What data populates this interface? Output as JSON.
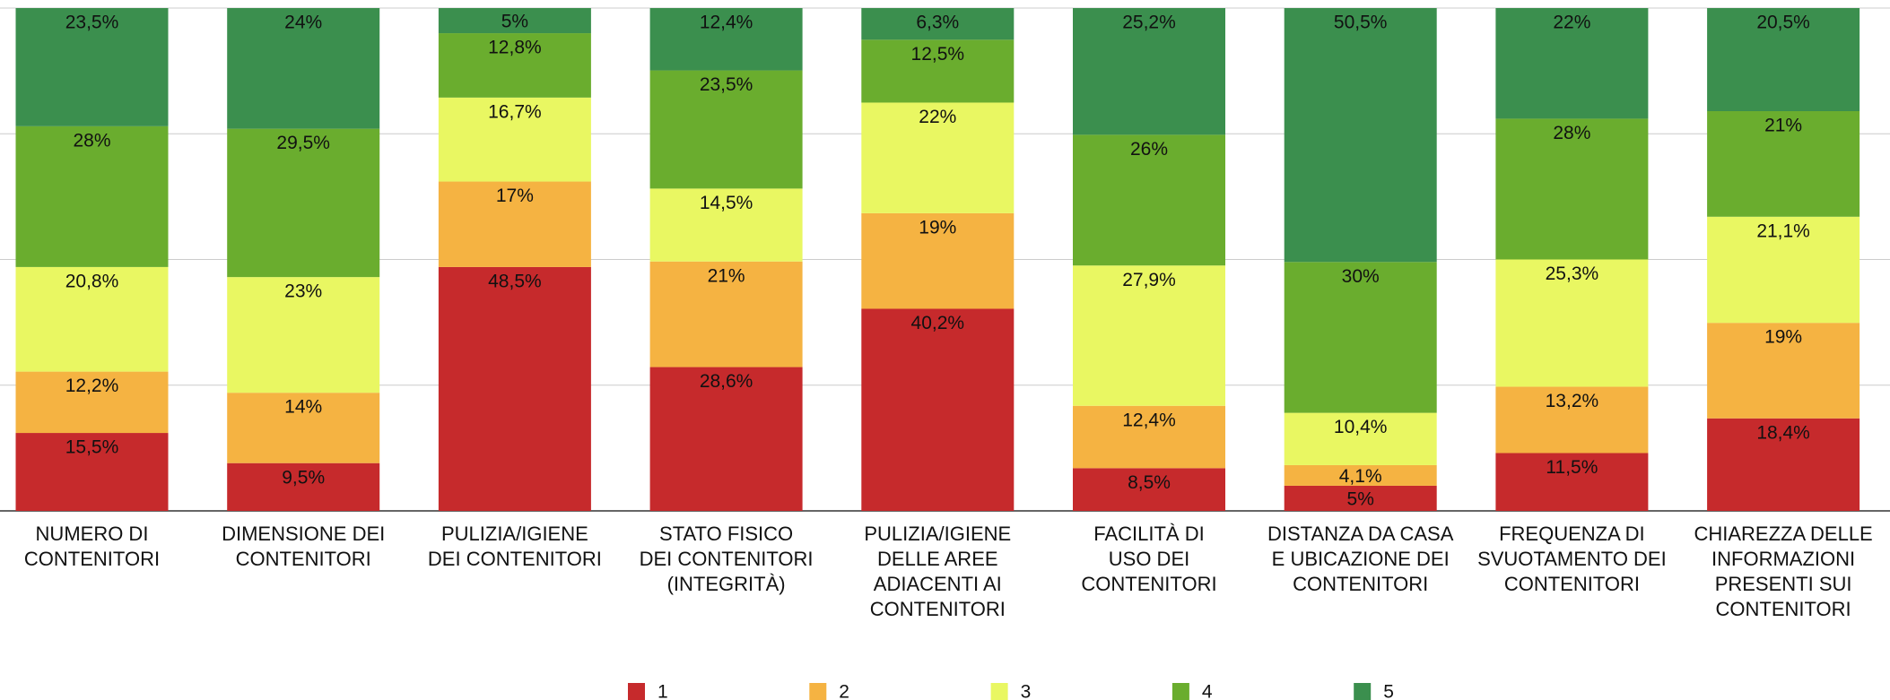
{
  "chart_data": {
    "type": "stacked_bar",
    "categories": [
      "NUMERO DI\nCONTENITORI",
      "DIMENSIONE DEI\nCONTENITORI",
      "PULIZIA/IGIENE\nDEI CONTENITORI",
      "STATO FISICO\nDEI CONTENITORI\n(INTEGRITÀ)",
      "PULIZIA/IGIENE\nDELLE AREE\nADIACENTI AI\nCONTENITORI",
      "FACILITÀ DI\nUSO DEI\nCONTENITORI",
      "DISTANZA DA CASA\nE UBICAZIONE DEI\nCONTENITORI",
      "FREQUENZA DI\nSVUOTAMENTO DEI\nCONTENITORI",
      "CHIAREZZA DELLE\nINFORMAZIONI\nPRESENTI SUI\nCONTENITORI"
    ],
    "series": [
      {
        "name": "1",
        "color": "#c62a2c",
        "values": [
          15.5,
          9.5,
          48.5,
          28.6,
          40.2,
          8.5,
          5,
          11.5,
          18.4
        ],
        "value_labels": [
          "15,5%",
          "9,5%",
          "48,5%",
          "28,6%",
          "40,2%",
          "8,5%",
          "5%",
          "11,5%",
          "18,4%"
        ]
      },
      {
        "name": "2",
        "color": "#f5b342",
        "values": [
          12.2,
          14,
          17,
          21,
          19,
          12.4,
          4.1,
          13.2,
          19
        ],
        "value_labels": [
          "12,2%",
          "14%",
          "17%",
          "21%",
          "19%",
          "12,4%",
          "4,1%",
          "13,2%",
          "19%"
        ]
      },
      {
        "name": "3",
        "color": "#e9f762",
        "values": [
          20.8,
          23,
          16.7,
          14.5,
          22,
          27.9,
          10.4,
          25.3,
          21.1
        ],
        "value_labels": [
          "20,8%",
          "23%",
          "16,7%",
          "14,5%",
          "22%",
          "27,9%",
          "10,4%",
          "25,3%",
          "21,1%"
        ]
      },
      {
        "name": "4",
        "color": "#6aad2e",
        "values": [
          28,
          29.5,
          12.8,
          23.5,
          12.5,
          26,
          30,
          28,
          21
        ],
        "value_labels": [
          "28%",
          "29,5%",
          "12,8%",
          "23,5%",
          "12,5%",
          "26%",
          "30%",
          "28%",
          "21%"
        ]
      },
      {
        "name": "5",
        "color": "#3b8f4e",
        "values": [
          23.5,
          24,
          5,
          12.4,
          6.3,
          25.2,
          50.5,
          22,
          20.5
        ],
        "value_labels": [
          "23,5%",
          "24%",
          "5%",
          "12,4%",
          "6,3%",
          "25,2%",
          "50,5%",
          "22%",
          "20,5%"
        ]
      }
    ],
    "ylim": [
      0,
      100
    ],
    "yticks": [
      0,
      25,
      50,
      75,
      100
    ],
    "grid": true,
    "legend": "bottom"
  }
}
